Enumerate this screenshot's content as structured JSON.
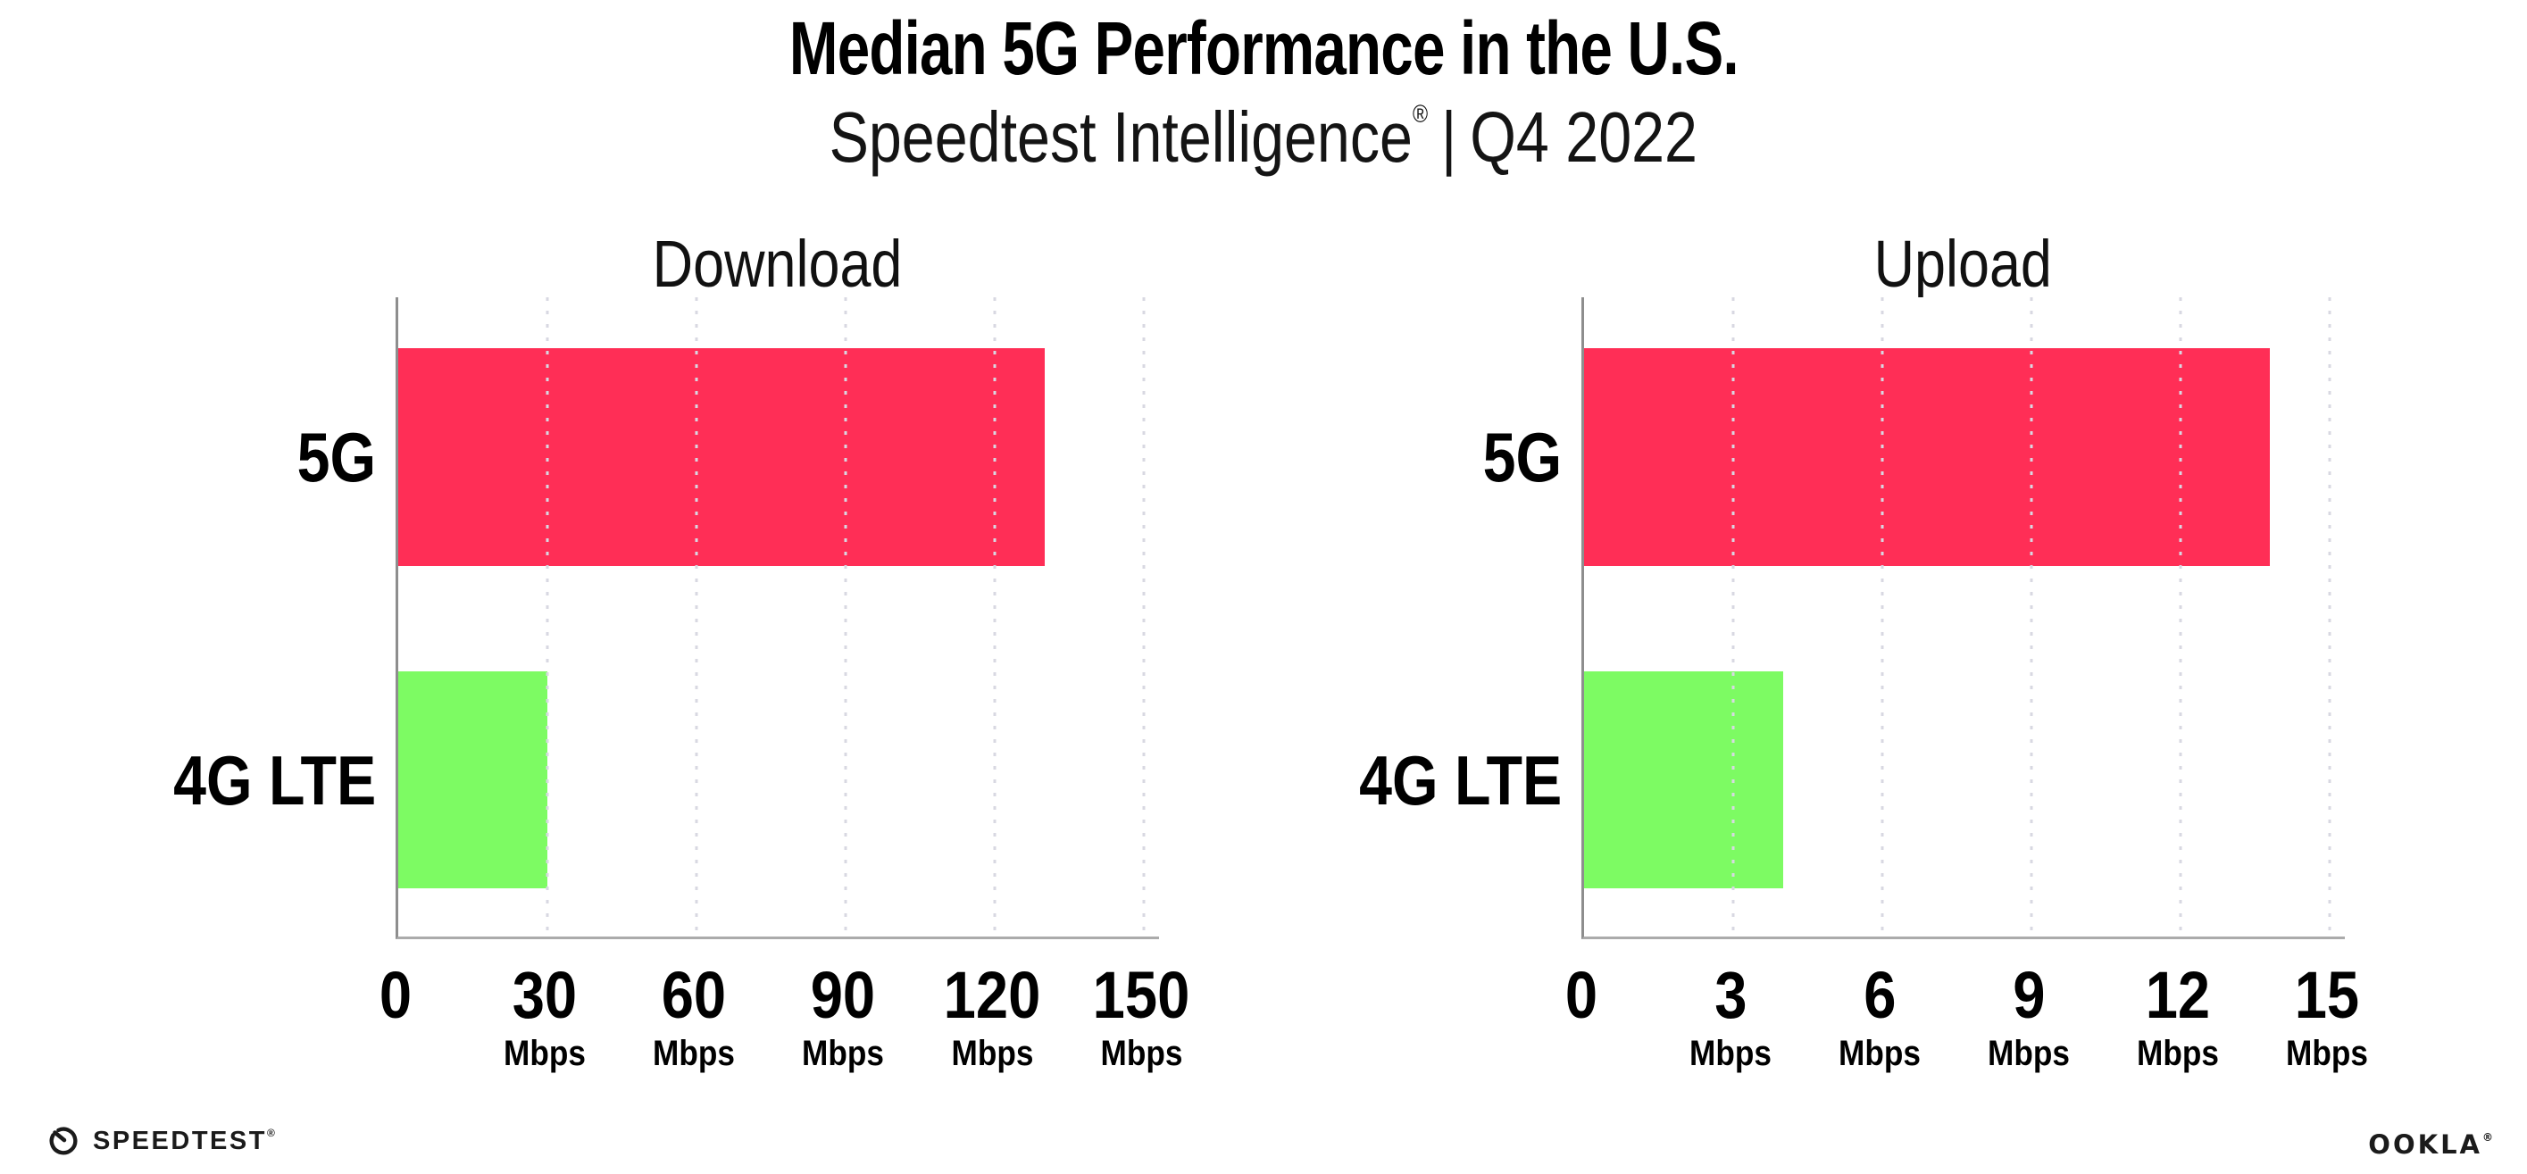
{
  "header": {
    "title": "Median 5G Performance in the U.S.",
    "subtitle_brand": "Speedtest Intelligence",
    "subtitle_mark": "®",
    "subtitle_rest": "Q4 2022",
    "subtitle_separator": "|"
  },
  "chart_data": [
    {
      "type": "bar",
      "orientation": "horizontal",
      "title": "Download",
      "categories": [
        "5G",
        "4G LTE"
      ],
      "values": [
        130,
        30
      ],
      "unit": "Mbps",
      "xticks": [
        0,
        30,
        60,
        90,
        120,
        150
      ],
      "xlim": [
        0,
        153
      ],
      "grid": "dotted-vertical",
      "legend": "none",
      "bar_colors": [
        "#FF2E56",
        "#7DFB63"
      ]
    },
    {
      "type": "bar",
      "orientation": "horizontal",
      "title": "Upload",
      "categories": [
        "5G",
        "4G LTE"
      ],
      "values": [
        13.8,
        4
      ],
      "unit": "Mbps",
      "xticks": [
        0,
        3,
        6,
        9,
        12,
        15
      ],
      "xlim": [
        0,
        15.3
      ],
      "grid": "dotted-vertical",
      "legend": "none",
      "bar_colors": [
        "#FF2E56",
        "#7DFB63"
      ]
    }
  ],
  "colors": {
    "bar_5g": "#FF2E56",
    "bar_4g_lte": "#7DFB63",
    "gridline": "#D8D8E2",
    "y_axis_line": "#8E8E8E",
    "x_axis_line": "#ABABAB",
    "text": "#000000"
  },
  "footer": {
    "speedtest_label": "SPEEDTEST",
    "speedtest_mark": "®",
    "ookla_label": "OOKLA",
    "ookla_mark": "®"
  }
}
